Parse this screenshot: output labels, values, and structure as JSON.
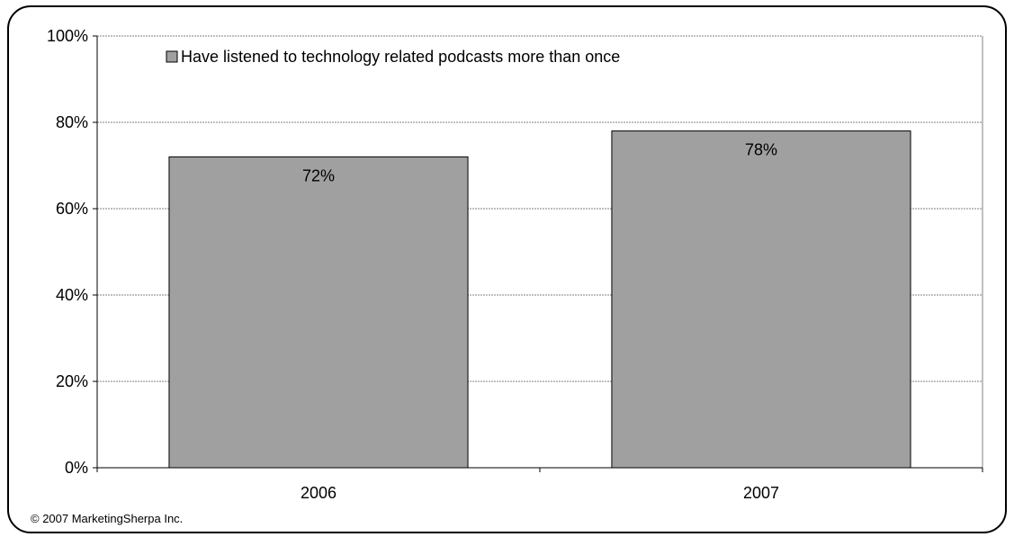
{
  "chart_data": {
    "type": "bar",
    "categories": [
      "2006",
      "2007"
    ],
    "series": [
      {
        "name": "Have listened to technology related podcasts more than once",
        "values": [
          72,
          78
        ]
      }
    ],
    "data_labels": [
      "72%",
      "78%"
    ],
    "ylim": [
      0,
      100
    ],
    "y_ticks": [
      0,
      20,
      40,
      60,
      80,
      100
    ],
    "y_tick_labels": [
      "0%",
      "20%",
      "40%",
      "60%",
      "80%",
      "100%"
    ],
    "title": "",
    "xlabel": "",
    "ylabel": "",
    "grid": true,
    "legend_position": "top-left",
    "colors": {
      "bar": "#a0a0a0",
      "bar_edge": "#000000",
      "grid": "#808080"
    }
  },
  "footer": {
    "copyright": "© 2007 MarketingSherpa Inc."
  }
}
